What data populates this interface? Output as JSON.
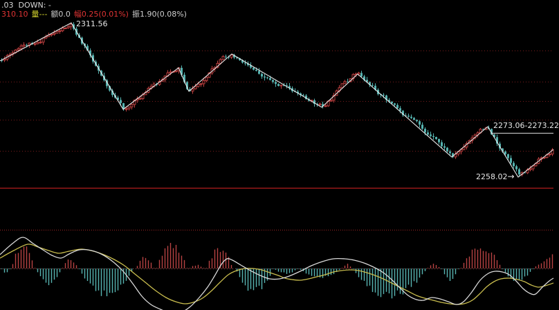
{
  "window": {
    "background": "#000000"
  },
  "header": {
    "line1": ".03  DOWN: -",
    "quote": {
      "price": "310.10",
      "volume": "量---",
      "amount": "额0.0",
      "change": "幅0.25(0.01%)",
      "swing": "振1.90(0.08%)"
    }
  },
  "annotations": {
    "peak_price": "2311.56",
    "range_price": "2273.06-2273.22",
    "low_price": "2258.02",
    "arrow": "→"
  },
  "colors": {
    "up": "#bf4040",
    "down": "#55b2af",
    "zigzag": "#e9e9e9",
    "grid": "#7a1c1c",
    "separator": "#701212",
    "dif": "#d9d9d9",
    "dea": "#c9bd4e",
    "hist_up": "#b84343",
    "hist_down": "#57b5b2",
    "zero_line": "#8f5f5f",
    "ref_line": "#a02424",
    "annotation": "#d9d9d9"
  },
  "chart_data": [
    {
      "type": "candlestick",
      "pane": "price",
      "x_range": [
        0,
        800
      ],
      "y_range": [
        26,
        268
      ],
      "grid_y": [
        73,
        118,
        146,
        173,
        218
      ],
      "separator_y": 272,
      "candle_spacing": 4,
      "candle_width": 3,
      "candle_count": 200,
      "seed": 11,
      "zigzag_pivots": [
        [
          0,
          88
        ],
        [
          103,
          33
        ],
        [
          178,
          158
        ],
        [
          258,
          98
        ],
        [
          273,
          132
        ],
        [
          335,
          78
        ],
        [
          465,
          155
        ],
        [
          517,
          107
        ],
        [
          653,
          227
        ],
        [
          705,
          183
        ],
        [
          749,
          256
        ],
        [
          800,
          216
        ]
      ],
      "price_points": [
        {
          "price": 2311.56,
          "y": 33
        },
        {
          "price": 2273.06,
          "y": 183
        },
        {
          "price": 2258.02,
          "y": 256
        }
      ],
      "range_line": {
        "x1": 710,
        "x2": 800,
        "y": 192
      }
    },
    {
      "type": "macd",
      "pane": "indicator",
      "zero_y": 388,
      "ref_line_y": 332,
      "bar_spacing": 4,
      "histogram_clusters": [
        {
          "x1": 2,
          "x2": 14,
          "c": "down",
          "p": 6
        },
        {
          "x1": 16,
          "x2": 50,
          "c": "up",
          "p": 33
        },
        {
          "x1": 52,
          "x2": 88,
          "c": "down",
          "p": 22
        },
        {
          "x1": 90,
          "x2": 112,
          "c": "up",
          "p": 12
        },
        {
          "x1": 114,
          "x2": 192,
          "c": "down",
          "p": 36
        },
        {
          "x1": 196,
          "x2": 222,
          "c": "up",
          "p": 15
        },
        {
          "x1": 226,
          "x2": 270,
          "c": "up",
          "p": 34
        },
        {
          "x1": 274,
          "x2": 294,
          "c": "up",
          "p": 5
        },
        {
          "x1": 298,
          "x2": 336,
          "c": "up",
          "p": 27
        },
        {
          "x1": 340,
          "x2": 394,
          "c": "down",
          "p": 32
        },
        {
          "x1": 396,
          "x2": 430,
          "c": "down",
          "p": 7
        },
        {
          "x1": 432,
          "x2": 492,
          "c": "down",
          "p": 13
        },
        {
          "x1": 494,
          "x2": 508,
          "c": "up",
          "p": 6
        },
        {
          "x1": 510,
          "x2": 616,
          "c": "down",
          "p": 38
        },
        {
          "x1": 618,
          "x2": 636,
          "c": "up",
          "p": 6
        },
        {
          "x1": 638,
          "x2": 662,
          "c": "down",
          "p": 17
        },
        {
          "x1": 666,
          "x2": 724,
          "c": "up",
          "p": 31
        },
        {
          "x1": 726,
          "x2": 770,
          "c": "down",
          "p": 17
        },
        {
          "x1": 774,
          "x2": 798,
          "c": "up",
          "p": 19,
          "shape": "ramp"
        }
      ],
      "dif_points": [
        [
          0,
          368
        ],
        [
          18,
          352
        ],
        [
          33,
          343
        ],
        [
          48,
          352
        ],
        [
          62,
          361
        ],
        [
          75,
          369
        ],
        [
          88,
          373
        ],
        [
          100,
          367
        ],
        [
          115,
          361
        ],
        [
          132,
          362
        ],
        [
          148,
          368
        ],
        [
          163,
          378
        ],
        [
          178,
          392
        ],
        [
          192,
          410
        ],
        [
          205,
          428
        ],
        [
          218,
          440
        ],
        [
          232,
          447
        ],
        [
          245,
          452
        ],
        [
          260,
          452
        ],
        [
          274,
          444
        ],
        [
          288,
          430
        ],
        [
          300,
          415
        ],
        [
          310,
          399
        ],
        [
          320,
          382
        ],
        [
          328,
          374
        ],
        [
          336,
          376
        ],
        [
          348,
          383
        ],
        [
          362,
          391
        ],
        [
          376,
          398
        ],
        [
          390,
          403
        ],
        [
          404,
          403
        ],
        [
          418,
          399
        ],
        [
          434,
          392
        ],
        [
          450,
          384
        ],
        [
          466,
          378
        ],
        [
          482,
          374
        ],
        [
          498,
          374
        ],
        [
          512,
          376
        ],
        [
          526,
          380
        ],
        [
          540,
          386
        ],
        [
          554,
          394
        ],
        [
          566,
          404
        ],
        [
          578,
          416
        ],
        [
          590,
          427
        ],
        [
          602,
          433
        ],
        [
          612,
          434
        ],
        [
          624,
          430
        ],
        [
          636,
          432
        ],
        [
          648,
          436
        ],
        [
          660,
          440
        ],
        [
          670,
          436
        ],
        [
          682,
          422
        ],
        [
          694,
          405
        ],
        [
          706,
          395
        ],
        [
          716,
          392
        ],
        [
          726,
          393
        ],
        [
          736,
          397
        ],
        [
          746,
          406
        ],
        [
          756,
          417
        ],
        [
          766,
          424
        ],
        [
          774,
          425
        ],
        [
          784,
          415
        ],
        [
          794,
          406
        ],
        [
          800,
          402
        ]
      ],
      "dea_points": [
        [
          0,
          373
        ],
        [
          20,
          362
        ],
        [
          40,
          353
        ],
        [
          55,
          357
        ],
        [
          70,
          362
        ],
        [
          85,
          366
        ],
        [
          100,
          363
        ],
        [
          118,
          360
        ],
        [
          135,
          363
        ],
        [
          150,
          368
        ],
        [
          165,
          375
        ],
        [
          180,
          384
        ],
        [
          195,
          396
        ],
        [
          210,
          408
        ],
        [
          225,
          420
        ],
        [
          240,
          430
        ],
        [
          254,
          436
        ],
        [
          268,
          439
        ],
        [
          282,
          436
        ],
        [
          294,
          430
        ],
        [
          306,
          420
        ],
        [
          318,
          408
        ],
        [
          330,
          397
        ],
        [
          342,
          391
        ],
        [
          354,
          388
        ],
        [
          366,
          388
        ],
        [
          378,
          390
        ],
        [
          390,
          394
        ],
        [
          402,
          398
        ],
        [
          412,
          402
        ],
        [
          422,
          404
        ],
        [
          434,
          405
        ],
        [
          446,
          403
        ],
        [
          458,
          400
        ],
        [
          470,
          397
        ],
        [
          482,
          393
        ],
        [
          494,
          391
        ],
        [
          506,
          390
        ],
        [
          518,
          391
        ],
        [
          530,
          394
        ],
        [
          542,
          398
        ],
        [
          554,
          403
        ],
        [
          566,
          409
        ],
        [
          578,
          415
        ],
        [
          590,
          421
        ],
        [
          602,
          427
        ],
        [
          614,
          431
        ],
        [
          626,
          434
        ],
        [
          638,
          437
        ],
        [
          650,
          439
        ],
        [
          662,
          440
        ],
        [
          674,
          438
        ],
        [
          684,
          433
        ],
        [
          694,
          424
        ],
        [
          704,
          414
        ],
        [
          714,
          407
        ],
        [
          724,
          403
        ],
        [
          736,
          402
        ],
        [
          748,
          404
        ],
        [
          758,
          407
        ],
        [
          768,
          412
        ],
        [
          778,
          415
        ],
        [
          788,
          413
        ],
        [
          800,
          409
        ]
      ]
    }
  ]
}
